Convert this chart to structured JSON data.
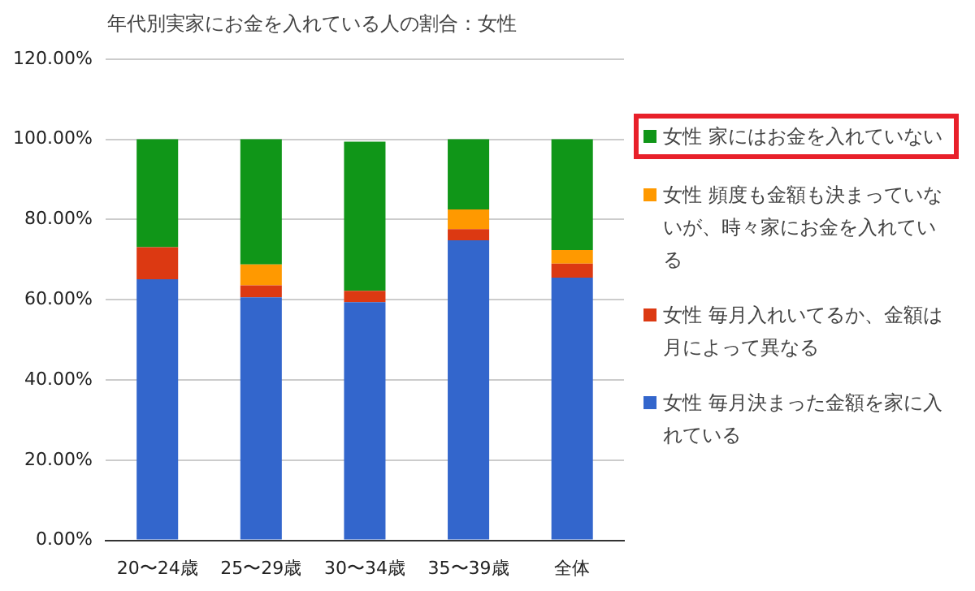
{
  "chart_data": {
    "type": "bar",
    "title": "年代別実家にお金を入れている人の割合：女性",
    "stacked": true,
    "categories": [
      "20〜24歳",
      "25〜29歳",
      "30〜34歳",
      "35〜39歳",
      "全体"
    ],
    "series": [
      {
        "name": "女性 毎月決まった金額を家に入れている",
        "color": "#3366cc",
        "values": [
          65.1,
          60.6,
          59.4,
          74.8,
          65.5
        ]
      },
      {
        "name": "女性 毎月入れいてるか、金額は月によって異なる",
        "color": "#dc3912",
        "values": [
          8.0,
          3.0,
          2.8,
          2.8,
          3.5
        ]
      },
      {
        "name": "女性 頻度も金額も決まっていないが、時々家にお金を入れている",
        "color": "#ff9900",
        "values": [
          0,
          5.2,
          0,
          4.9,
          3.4
        ]
      },
      {
        "name": "女性 家にはお金を入れていない",
        "color": "#109618",
        "values": [
          26.9,
          31.2,
          37.2,
          17.5,
          27.6
        ]
      }
    ],
    "ylim": [
      0,
      120
    ],
    "yticks": [
      {
        "value": 0,
        "label": "0.00%"
      },
      {
        "value": 20,
        "label": "20.00%"
      },
      {
        "value": 40,
        "label": "40.00%"
      },
      {
        "value": 60,
        "label": "60.00%"
      },
      {
        "value": 80,
        "label": "80.00%"
      },
      {
        "value": 100,
        "label": "100.00%"
      },
      {
        "value": 120,
        "label": "120.00%"
      }
    ],
    "grid": "y",
    "legend": "right"
  }
}
